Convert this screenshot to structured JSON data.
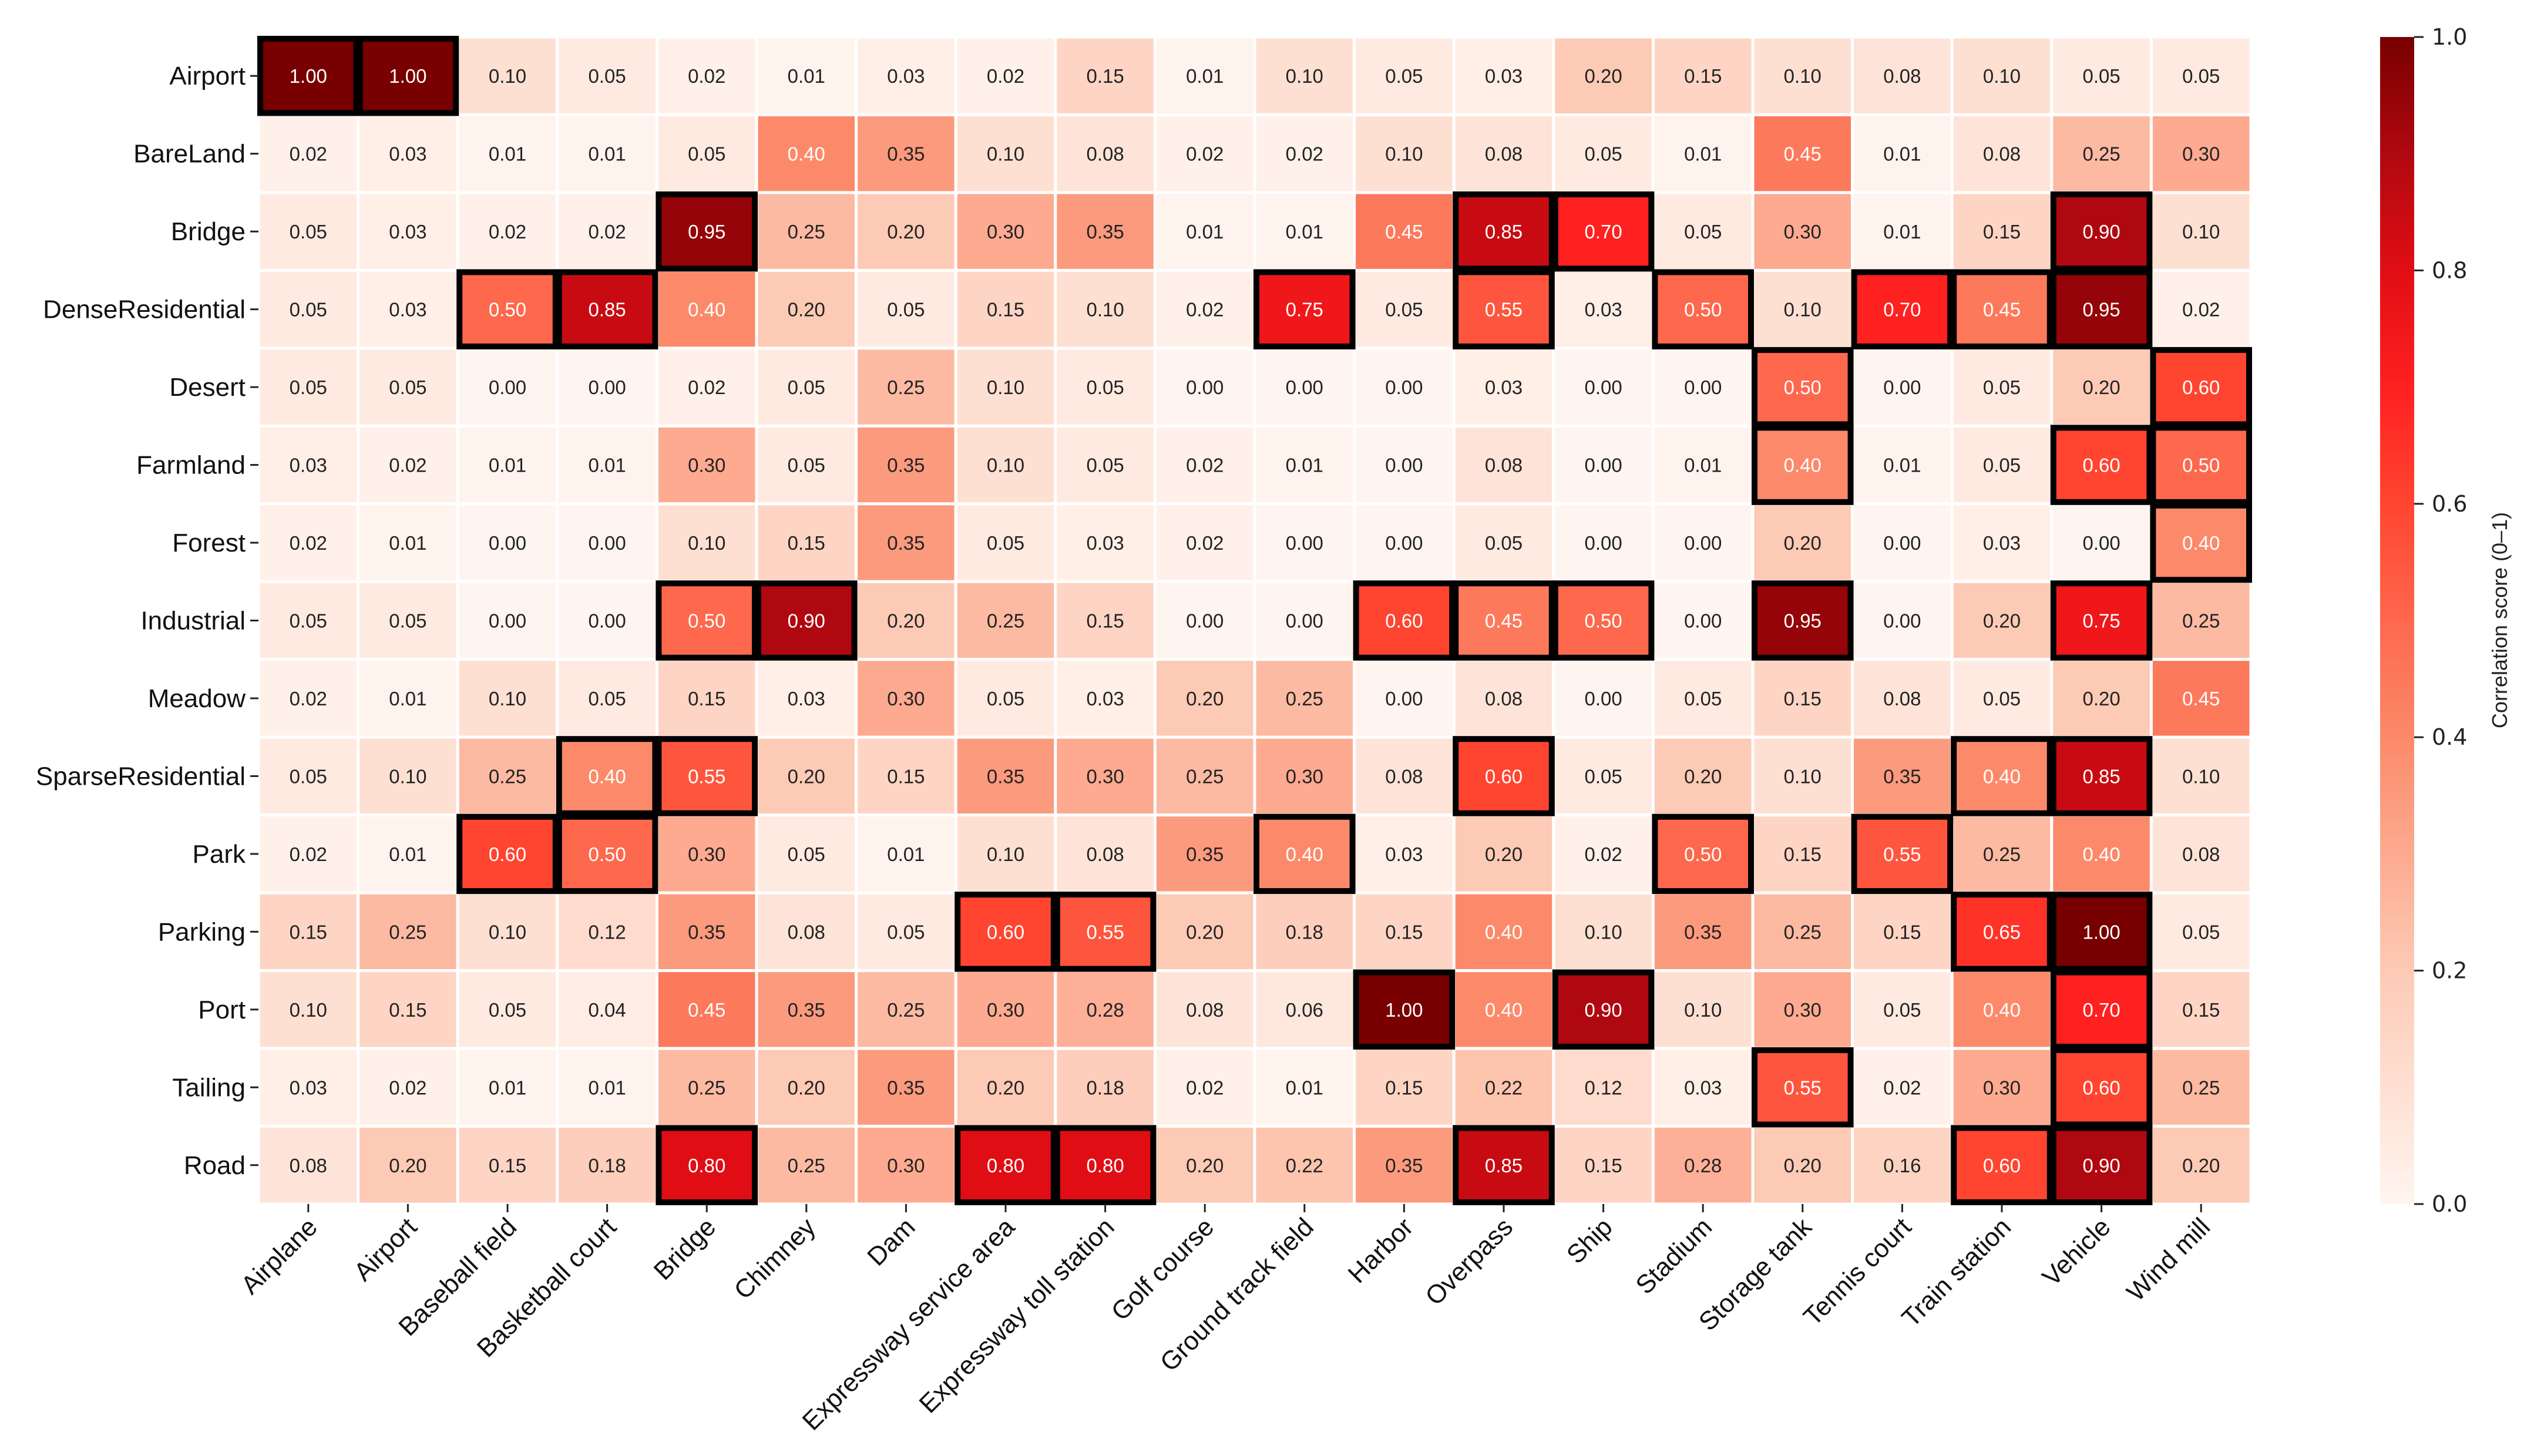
{
  "chart_data": {
    "type": "heatmap",
    "title": "",
    "rows": [
      "Airport",
      "BareLand",
      "Bridge",
      "DenseResidential",
      "Desert",
      "Farmland",
      "Forest",
      "Industrial",
      "Meadow",
      "SparseResidential",
      "Park",
      "Parking",
      "Port",
      "Tailing",
      "Road"
    ],
    "columns": [
      "Airplane",
      "Airport",
      "Baseball field",
      "Basketball court",
      "Bridge",
      "Chimney",
      "Dam",
      "Expressway service area",
      "Expressway toll station",
      "Golf course",
      "Ground track field",
      "Harbor",
      "Overpass",
      "Ship",
      "Stadium",
      "Storage tank",
      "Tennis court",
      "Train station",
      "Vehicle",
      "Wind mill"
    ],
    "values": [
      [
        1.0,
        1.0,
        0.1,
        0.05,
        0.02,
        0.01,
        0.03,
        0.02,
        0.15,
        0.01,
        0.1,
        0.05,
        0.03,
        0.2,
        0.15,
        0.1,
        0.08,
        0.1,
        0.05,
        0.05
      ],
      [
        0.02,
        0.03,
        0.01,
        0.01,
        0.05,
        0.4,
        0.35,
        0.1,
        0.08,
        0.02,
        0.02,
        0.1,
        0.08,
        0.05,
        0.01,
        0.45,
        0.01,
        0.08,
        0.25,
        0.3
      ],
      [
        0.05,
        0.03,
        0.02,
        0.02,
        0.95,
        0.25,
        0.2,
        0.3,
        0.35,
        0.01,
        0.01,
        0.45,
        0.85,
        0.7,
        0.05,
        0.3,
        0.01,
        0.15,
        0.9,
        0.1
      ],
      [
        0.05,
        0.03,
        0.5,
        0.85,
        0.4,
        0.2,
        0.05,
        0.15,
        0.1,
        0.02,
        0.75,
        0.05,
        0.55,
        0.03,
        0.5,
        0.1,
        0.7,
        0.45,
        0.95,
        0.02
      ],
      [
        0.05,
        0.05,
        0.0,
        0.0,
        0.02,
        0.05,
        0.25,
        0.1,
        0.05,
        0.0,
        0.0,
        0.0,
        0.03,
        0.0,
        0.0,
        0.5,
        0.0,
        0.05,
        0.2,
        0.6
      ],
      [
        0.03,
        0.02,
        0.01,
        0.01,
        0.3,
        0.05,
        0.35,
        0.1,
        0.05,
        0.02,
        0.01,
        0.0,
        0.08,
        0.0,
        0.01,
        0.4,
        0.01,
        0.05,
        0.6,
        0.5
      ],
      [
        0.02,
        0.01,
        0.0,
        0.0,
        0.1,
        0.15,
        0.35,
        0.05,
        0.03,
        0.02,
        0.0,
        0.0,
        0.05,
        0.0,
        0.0,
        0.2,
        0.0,
        0.03,
        0.0,
        0.4
      ],
      [
        0.05,
        0.05,
        0.0,
        0.0,
        0.5,
        0.9,
        0.2,
        0.25,
        0.15,
        0.0,
        0.0,
        0.6,
        0.45,
        0.5,
        0.0,
        0.95,
        0.0,
        0.2,
        0.75,
        0.25
      ],
      [
        0.02,
        0.01,
        0.1,
        0.05,
        0.15,
        0.03,
        0.3,
        0.05,
        0.03,
        0.2,
        0.25,
        0.0,
        0.08,
        0.0,
        0.05,
        0.15,
        0.08,
        0.05,
        0.2,
        0.45
      ],
      [
        0.05,
        0.1,
        0.25,
        0.4,
        0.55,
        0.2,
        0.15,
        0.35,
        0.3,
        0.25,
        0.3,
        0.08,
        0.6,
        0.05,
        0.2,
        0.1,
        0.35,
        0.4,
        0.85,
        0.1
      ],
      [
        0.02,
        0.01,
        0.6,
        0.5,
        0.3,
        0.05,
        0.01,
        0.1,
        0.08,
        0.35,
        0.4,
        0.03,
        0.2,
        0.02,
        0.5,
        0.15,
        0.55,
        0.25,
        0.4,
        0.08
      ],
      [
        0.15,
        0.25,
        0.1,
        0.12,
        0.35,
        0.08,
        0.05,
        0.6,
        0.55,
        0.2,
        0.18,
        0.15,
        0.4,
        0.1,
        0.35,
        0.25,
        0.15,
        0.65,
        1.0,
        0.05
      ],
      [
        0.1,
        0.15,
        0.05,
        0.04,
        0.45,
        0.35,
        0.25,
        0.3,
        0.28,
        0.08,
        0.06,
        1.0,
        0.4,
        0.9,
        0.1,
        0.3,
        0.05,
        0.4,
        0.7,
        0.15
      ],
      [
        0.03,
        0.02,
        0.01,
        0.01,
        0.25,
        0.2,
        0.35,
        0.2,
        0.18,
        0.02,
        0.01,
        0.15,
        0.22,
        0.12,
        0.03,
        0.55,
        0.02,
        0.3,
        0.6,
        0.25
      ],
      [
        0.08,
        0.2,
        0.15,
        0.18,
        0.8,
        0.25,
        0.3,
        0.8,
        0.8,
        0.2,
        0.22,
        0.35,
        0.85,
        0.15,
        0.28,
        0.2,
        0.16,
        0.6,
        0.9,
        0.2
      ]
    ],
    "highlighted_cells": [
      [
        "Airport",
        "Airplane"
      ],
      [
        "Airport",
        "Airport"
      ],
      [
        "Bridge",
        "Bridge"
      ],
      [
        "Bridge",
        "Overpass"
      ],
      [
        "Bridge",
        "Ship"
      ],
      [
        "Bridge",
        "Vehicle"
      ],
      [
        "DenseResidential",
        "Baseball field"
      ],
      [
        "DenseResidential",
        "Basketball court"
      ],
      [
        "DenseResidential",
        "Ground track field"
      ],
      [
        "DenseResidential",
        "Overpass"
      ],
      [
        "DenseResidential",
        "Stadium"
      ],
      [
        "DenseResidential",
        "Tennis court"
      ],
      [
        "DenseResidential",
        "Train station"
      ],
      [
        "DenseResidential",
        "Vehicle"
      ],
      [
        "Desert",
        "Storage tank"
      ],
      [
        "Desert",
        "Wind mill"
      ],
      [
        "Farmland",
        "Storage tank"
      ],
      [
        "Farmland",
        "Vehicle"
      ],
      [
        "Farmland",
        "Wind mill"
      ],
      [
        "Forest",
        "Wind mill"
      ],
      [
        "Industrial",
        "Bridge"
      ],
      [
        "Industrial",
        "Chimney"
      ],
      [
        "Industrial",
        "Harbor"
      ],
      [
        "Industrial",
        "Overpass"
      ],
      [
        "Industrial",
        "Ship"
      ],
      [
        "Industrial",
        "Storage tank"
      ],
      [
        "Industrial",
        "Vehicle"
      ],
      [
        "SparseResidential",
        "Basketball court"
      ],
      [
        "SparseResidential",
        "Bridge"
      ],
      [
        "SparseResidential",
        "Overpass"
      ],
      [
        "SparseResidential",
        "Train station"
      ],
      [
        "SparseResidential",
        "Vehicle"
      ],
      [
        "Park",
        "Baseball field"
      ],
      [
        "Park",
        "Basketball court"
      ],
      [
        "Park",
        "Ground track field"
      ],
      [
        "Park",
        "Stadium"
      ],
      [
        "Park",
        "Tennis court"
      ],
      [
        "Parking",
        "Expressway service area"
      ],
      [
        "Parking",
        "Expressway toll station"
      ],
      [
        "Parking",
        "Train station"
      ],
      [
        "Parking",
        "Vehicle"
      ],
      [
        "Port",
        "Harbor"
      ],
      [
        "Port",
        "Ship"
      ],
      [
        "Port",
        "Vehicle"
      ],
      [
        "Tailing",
        "Storage tank"
      ],
      [
        "Tailing",
        "Vehicle"
      ],
      [
        "Road",
        "Bridge"
      ],
      [
        "Road",
        "Expressway service area"
      ],
      [
        "Road",
        "Expressway toll station"
      ],
      [
        "Road",
        "Overpass"
      ],
      [
        "Road",
        "Train station"
      ],
      [
        "Road",
        "Vehicle"
      ]
    ],
    "value_format": "2 decimals",
    "vmin": 0.0,
    "vmax": 1.0,
    "colormap": "Reds",
    "colorbar": {
      "label": "Correlation score (0–1)",
      "ticks": [
        "0.0",
        "0.2",
        "0.4",
        "0.6",
        "0.8",
        "1.0"
      ]
    },
    "colors": {
      "low": "#fff5f0",
      "high": "#780000",
      "highlight_border": "#000000"
    }
  }
}
